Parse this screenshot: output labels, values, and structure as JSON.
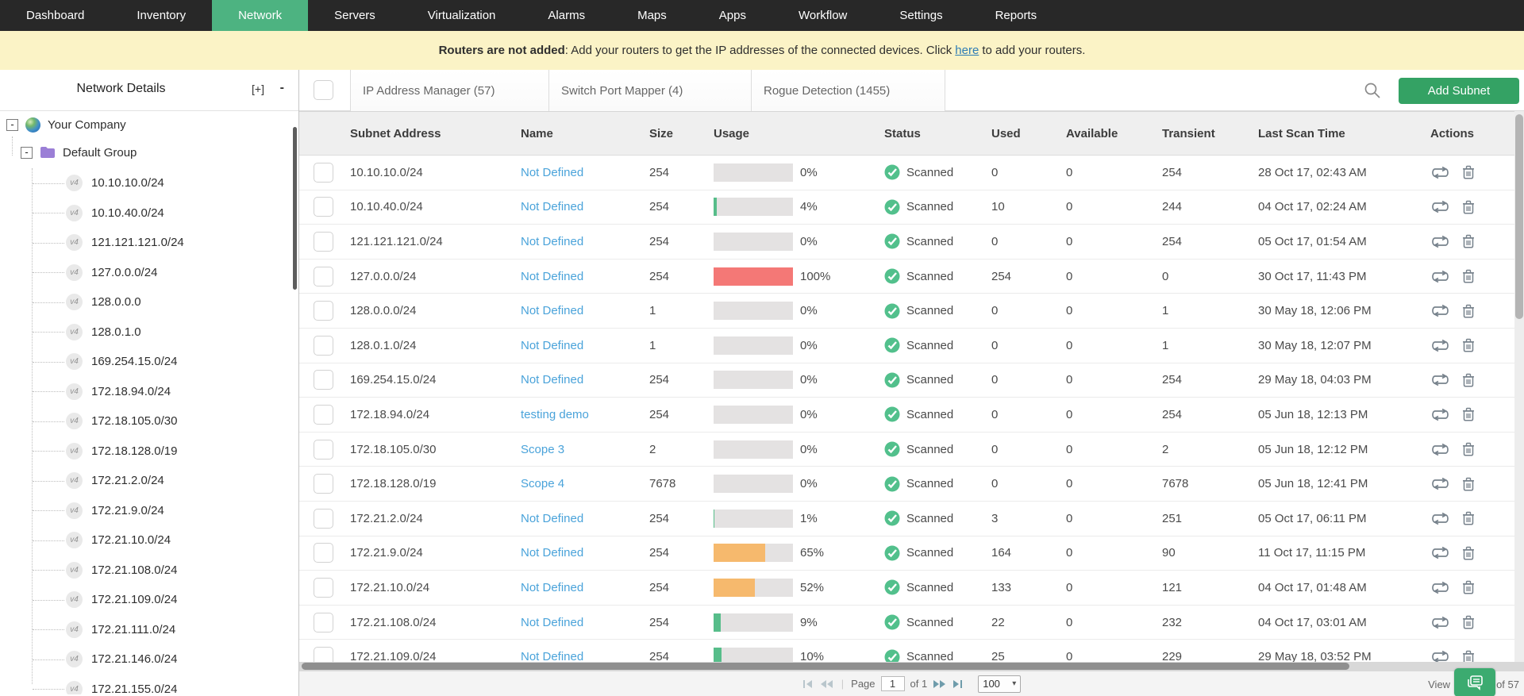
{
  "nav": {
    "items": [
      {
        "label": "Dashboard",
        "active": false
      },
      {
        "label": "Inventory",
        "active": false
      },
      {
        "label": "Network",
        "active": true
      },
      {
        "label": "Servers",
        "active": false
      },
      {
        "label": "Virtualization",
        "active": false
      },
      {
        "label": "Alarms",
        "active": false
      },
      {
        "label": "Maps",
        "active": false
      },
      {
        "label": "Apps",
        "active": false
      },
      {
        "label": "Workflow",
        "active": false
      },
      {
        "label": "Settings",
        "active": false
      },
      {
        "label": "Reports",
        "active": false
      }
    ]
  },
  "banner": {
    "bold": "Routers are not added",
    "mid": ": Add your routers to get the IP addresses of the connected devices. Click",
    "link": "here",
    "tail": "to add your routers."
  },
  "sidebar": {
    "title": "Network Details",
    "expand_all": "[+]",
    "collapse_all": "-",
    "toggle": "-",
    "root": "Your Company",
    "group": "Default Group",
    "badge": "v4",
    "subnets": [
      "10.10.10.0/24",
      "10.10.40.0/24",
      "121.121.121.0/24",
      "127.0.0.0/24",
      "128.0.0.0",
      "128.0.1.0",
      "169.254.15.0/24",
      "172.18.94.0/24",
      "172.18.105.0/30",
      "172.18.128.0/19",
      "172.21.2.0/24",
      "172.21.9.0/24",
      "172.21.10.0/24",
      "172.21.108.0/24",
      "172.21.109.0/24",
      "172.21.111.0/24",
      "172.21.146.0/24",
      "172.21.155.0/24"
    ]
  },
  "toolbar": {
    "tabs": [
      "IP Address Manager (57)",
      "Switch Port Mapper (4)",
      "Rogue Detection (1455)"
    ],
    "search_icon": "search",
    "add_button": "Add Subnet"
  },
  "table": {
    "columns": [
      "Subnet Address",
      "Name",
      "Size",
      "Usage",
      "Status",
      "Used",
      "Available",
      "Transient",
      "Last Scan Time",
      "Actions"
    ],
    "rows": [
      {
        "subnet": "10.10.10.0/24",
        "name": "Not Defined",
        "size": "254",
        "usage_pct": 0,
        "usage_label": "0%",
        "bar_color": null,
        "status": "Scanned",
        "used": "0",
        "available": "0",
        "transient": "254",
        "last_scan": "28 Oct 17, 02:43 AM"
      },
      {
        "subnet": "10.10.40.0/24",
        "name": "Not Defined",
        "size": "254",
        "usage_pct": 4,
        "usage_label": "4%",
        "bar_color": "#57bd8a",
        "status": "Scanned",
        "used": "10",
        "available": "0",
        "transient": "244",
        "last_scan": "04 Oct 17, 02:24 AM"
      },
      {
        "subnet": "121.121.121.0/24",
        "name": "Not Defined",
        "size": "254",
        "usage_pct": 0,
        "usage_label": "0%",
        "bar_color": null,
        "status": "Scanned",
        "used": "0",
        "available": "0",
        "transient": "254",
        "last_scan": "05 Oct 17, 01:54 AM"
      },
      {
        "subnet": "127.0.0.0/24",
        "name": "Not Defined",
        "size": "254",
        "usage_pct": 100,
        "usage_label": "100%",
        "bar_color": "#f47876",
        "status": "Scanned",
        "used": "254",
        "available": "0",
        "transient": "0",
        "last_scan": "30 Oct 17, 11:43 PM"
      },
      {
        "subnet": "128.0.0.0/24",
        "name": "Not Defined",
        "size": "1",
        "usage_pct": 0,
        "usage_label": "0%",
        "bar_color": null,
        "status": "Scanned",
        "used": "0",
        "available": "0",
        "transient": "1",
        "last_scan": "30 May 18, 12:06 PM"
      },
      {
        "subnet": "128.0.1.0/24",
        "name": "Not Defined",
        "size": "1",
        "usage_pct": 0,
        "usage_label": "0%",
        "bar_color": null,
        "status": "Scanned",
        "used": "0",
        "available": "0",
        "transient": "1",
        "last_scan": "30 May 18, 12:07 PM"
      },
      {
        "subnet": "169.254.15.0/24",
        "name": "Not Defined",
        "size": "254",
        "usage_pct": 0,
        "usage_label": "0%",
        "bar_color": null,
        "status": "Scanned",
        "used": "0",
        "available": "0",
        "transient": "254",
        "last_scan": "29 May 18, 04:03 PM"
      },
      {
        "subnet": "172.18.94.0/24",
        "name": "testing demo",
        "size": "254",
        "usage_pct": 0,
        "usage_label": "0%",
        "bar_color": null,
        "status": "Scanned",
        "used": "0",
        "available": "0",
        "transient": "254",
        "last_scan": "05 Jun 18, 12:13 PM"
      },
      {
        "subnet": "172.18.105.0/30",
        "name": "Scope 3",
        "size": "2",
        "usage_pct": 0,
        "usage_label": "0%",
        "bar_color": null,
        "status": "Scanned",
        "used": "0",
        "available": "0",
        "transient": "2",
        "last_scan": "05 Jun 18, 12:12 PM"
      },
      {
        "subnet": "172.18.128.0/19",
        "name": "Scope 4",
        "size": "7678",
        "usage_pct": 0,
        "usage_label": "0%",
        "bar_color": null,
        "status": "Scanned",
        "used": "0",
        "available": "0",
        "transient": "7678",
        "last_scan": "05 Jun 18, 12:41 PM"
      },
      {
        "subnet": "172.21.2.0/24",
        "name": "Not Defined",
        "size": "254",
        "usage_pct": 1,
        "usage_label": "1%",
        "bar_color": "#57bd8a",
        "status": "Scanned",
        "used": "3",
        "available": "0",
        "transient": "251",
        "last_scan": "05 Oct 17, 06:11 PM"
      },
      {
        "subnet": "172.21.9.0/24",
        "name": "Not Defined",
        "size": "254",
        "usage_pct": 65,
        "usage_label": "65%",
        "bar_color": "#f6b96d",
        "status": "Scanned",
        "used": "164",
        "available": "0",
        "transient": "90",
        "last_scan": "11 Oct 17, 11:15 PM"
      },
      {
        "subnet": "172.21.10.0/24",
        "name": "Not Defined",
        "size": "254",
        "usage_pct": 52,
        "usage_label": "52%",
        "bar_color": "#f6b96d",
        "status": "Scanned",
        "used": "133",
        "available": "0",
        "transient": "121",
        "last_scan": "04 Oct 17, 01:48 AM"
      },
      {
        "subnet": "172.21.108.0/24",
        "name": "Not Defined",
        "size": "254",
        "usage_pct": 9,
        "usage_label": "9%",
        "bar_color": "#57bd8a",
        "status": "Scanned",
        "used": "22",
        "available": "0",
        "transient": "232",
        "last_scan": "04 Oct 17, 03:01 AM"
      },
      {
        "subnet": "172.21.109.0/24",
        "name": "Not Defined",
        "size": "254",
        "usage_pct": 10,
        "usage_label": "10%",
        "bar_color": "#57bd8a",
        "status": "Scanned",
        "used": "25",
        "available": "0",
        "transient": "229",
        "last_scan": "29 May 18, 03:52 PM"
      }
    ]
  },
  "pagination": {
    "page_label": "Page",
    "page_value": "1",
    "of_label": "of 1",
    "page_size": "100",
    "view_prefix": "View",
    "view_suffix": "of 57"
  },
  "colors": {
    "nav_bg": "#282828",
    "nav_active": "#4db381",
    "banner_bg": "#fbf3c6",
    "banner_link": "#2d7cb5",
    "table_link": "#4aa3da",
    "status_green": "#52c08c",
    "bar_bg": "#e4e2e2",
    "bar_green": "#57bd8a",
    "bar_orange": "#f6b96d",
    "bar_red": "#f47876",
    "add_button_green": "#34a264",
    "chat_button_green": "#3cab70"
  }
}
